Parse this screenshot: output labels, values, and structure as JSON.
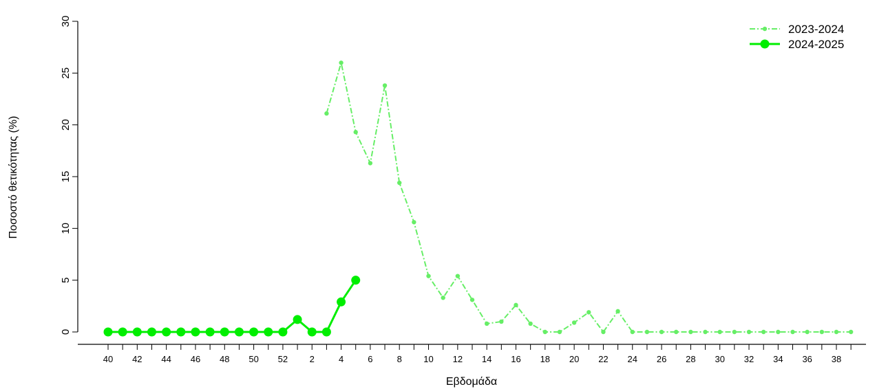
{
  "chart_data": {
    "type": "line",
    "title": "",
    "xlabel": "Εβδομάδα",
    "ylabel": "Ποσοστό θετικότητας (%)",
    "ylim": [
      0,
      30
    ],
    "yticks": [
      0,
      5,
      10,
      15,
      20,
      25,
      30
    ],
    "categories": [
      "40",
      "41",
      "42",
      "43",
      "44",
      "45",
      "46",
      "47",
      "48",
      "49",
      "50",
      "51",
      "52",
      "1",
      "2",
      "3",
      "4",
      "5",
      "6",
      "7",
      "8",
      "9",
      "10",
      "11",
      "12",
      "13",
      "14",
      "15",
      "16",
      "17",
      "18",
      "19",
      "20",
      "21",
      "22",
      "23",
      "24",
      "25",
      "26",
      "27",
      "28",
      "29",
      "30",
      "31",
      "32",
      "33",
      "34",
      "35",
      "36",
      "37",
      "38",
      "39"
    ],
    "x_tick_labels": [
      "40",
      "",
      "42",
      "",
      "44",
      "",
      "46",
      "",
      "48",
      "",
      "50",
      "",
      "52",
      "",
      "2",
      "",
      "4",
      "",
      "6",
      "",
      "8",
      "",
      "10",
      "",
      "12",
      "",
      "14",
      "",
      "16",
      "",
      "18",
      "",
      "20",
      "",
      "22",
      "",
      "24",
      "",
      "26",
      "",
      "28",
      "",
      "30",
      "",
      "32",
      "",
      "34",
      "",
      "36",
      "",
      "38",
      ""
    ],
    "grid": false,
    "legend_position": "top-right",
    "series": [
      {
        "name": "2023-2024",
        "color": "#66ee66",
        "style": "dash-dot",
        "values": [
          null,
          null,
          null,
          null,
          null,
          null,
          null,
          null,
          null,
          null,
          null,
          null,
          null,
          null,
          null,
          21.1,
          26.0,
          19.3,
          16.3,
          23.8,
          14.4,
          10.6,
          5.4,
          3.3,
          5.4,
          3.1,
          0.8,
          1.0,
          2.6,
          0.8,
          0,
          0,
          0.9,
          1.9,
          0,
          2.0,
          0,
          0,
          0,
          0,
          0,
          0,
          0,
          0,
          0,
          0,
          0,
          0,
          0,
          0,
          0,
          0
        ]
      },
      {
        "name": "2024-2025",
        "color": "#00ee00",
        "style": "solid",
        "values": [
          0,
          0,
          0,
          0,
          0,
          0,
          0,
          0,
          0,
          0,
          0,
          0,
          0,
          1.2,
          0,
          0,
          2.9,
          5.0,
          null,
          null,
          null,
          null,
          null,
          null,
          null,
          null,
          null,
          null,
          null,
          null,
          null,
          null,
          null,
          null,
          null,
          null,
          null,
          null,
          null,
          null,
          null,
          null,
          null,
          null,
          null,
          null,
          null,
          null,
          null,
          null,
          null,
          null
        ]
      }
    ]
  }
}
